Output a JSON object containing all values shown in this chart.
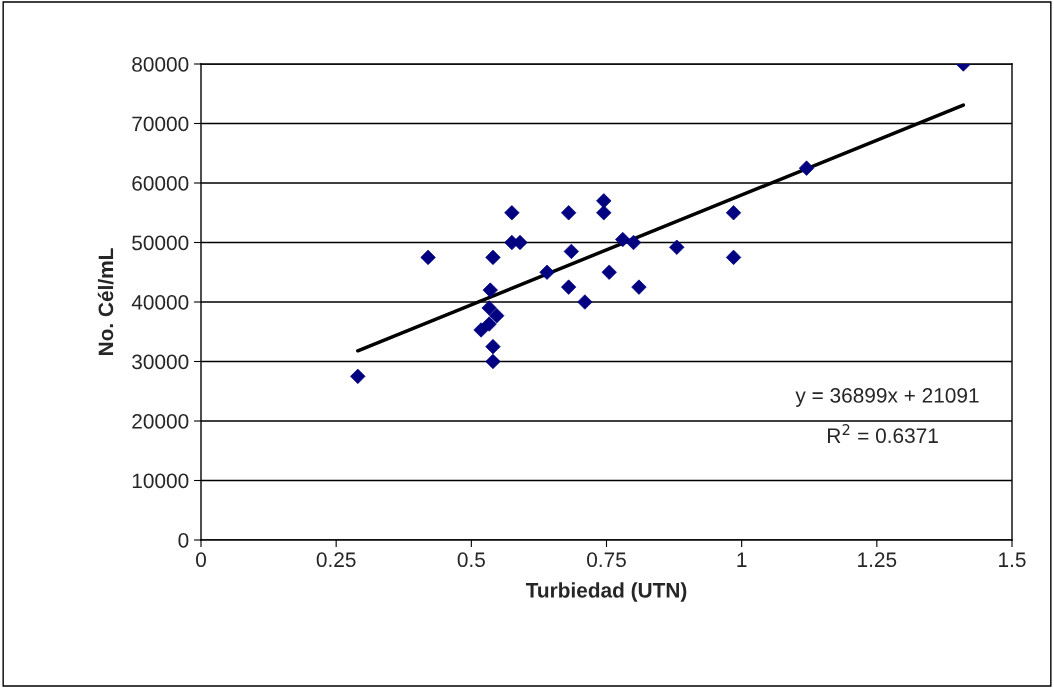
{
  "chart_data": {
    "type": "scatter",
    "xlabel": "Turbiedad (UTN)",
    "ylabel": "No. Cél/mL",
    "xlim": [
      0,
      1.5
    ],
    "xticks": [
      0,
      0.25,
      0.5,
      0.75,
      1,
      1.25,
      1.5
    ],
    "ylim": [
      0,
      80000
    ],
    "yticks": [
      0,
      10000,
      20000,
      30000,
      40000,
      50000,
      60000,
      70000,
      80000
    ],
    "grid": "y",
    "marker": "diamond",
    "series": [
      {
        "color": "#000080",
        "x": [
          0.29,
          0.42,
          0.54,
          0.535,
          0.533,
          0.547,
          0.518,
          0.533,
          0.54,
          0.54,
          0.575,
          0.575,
          0.59,
          0.64,
          0.68,
          0.685,
          0.68,
          0.71,
          0.745,
          0.745,
          0.78,
          0.8,
          0.755,
          0.81,
          0.88,
          0.985,
          0.985,
          1.12,
          1.41
        ],
        "values": [
          27500,
          47500,
          47500,
          42000,
          39000,
          37700,
          35300,
          36300,
          32500,
          30000,
          55000,
          50000,
          50000,
          45000,
          55000,
          48500,
          42500,
          40000,
          57000,
          55000,
          50500,
          50000,
          45000,
          42500,
          49200,
          55000,
          47500,
          62500,
          80000
        ]
      },
      {
        "type": "line",
        "marker": "none",
        "color": "#000000",
        "x": [
          0.29,
          1.41
        ],
        "values": [
          31800,
          73100
        ]
      }
    ],
    "annotations": [
      "y = 36899x + 21091",
      "R$^{2}$ = 0.6371"
    ]
  }
}
